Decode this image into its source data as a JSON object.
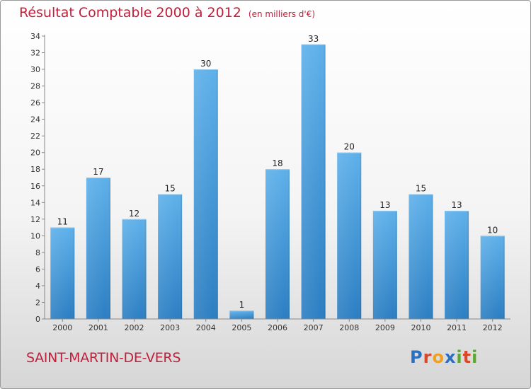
{
  "title": "Résultat Comptable 2000 à 2012",
  "unit_note": "(en milliers d'€)",
  "commune": "SAINT-MARTIN-DE-VERS",
  "logo": {
    "text": "Proxiti",
    "letter_colors": [
      "#2b6fc1",
      "#d8482a",
      "#f0a020",
      "#2b6fc1",
      "#5aa830",
      "#d8482a",
      "#5aa830"
    ]
  },
  "colors": {
    "title": "#c0203c",
    "bar_top": "#5eb0ea",
    "bar_bottom": "#2b7ec2"
  },
  "chart_data": {
    "type": "bar",
    "categories": [
      "2000",
      "2001",
      "2002",
      "2003",
      "2004",
      "2005",
      "2006",
      "2007",
      "2008",
      "2009",
      "2010",
      "2011",
      "2012"
    ],
    "values": [
      11,
      17,
      12,
      15,
      30,
      1,
      18,
      33,
      20,
      13,
      15,
      13,
      10
    ],
    "data_labels": [
      "11",
      "17",
      "12",
      "15",
      "30",
      "1",
      "18",
      "33",
      "20",
      "13",
      "15",
      "13",
      "10"
    ],
    "yticks": [
      0,
      2,
      4,
      6,
      8,
      10,
      12,
      14,
      16,
      18,
      20,
      22,
      24,
      26,
      28,
      30,
      32,
      34
    ],
    "ylim": [
      0,
      34
    ],
    "grid": false,
    "legend": "none"
  }
}
